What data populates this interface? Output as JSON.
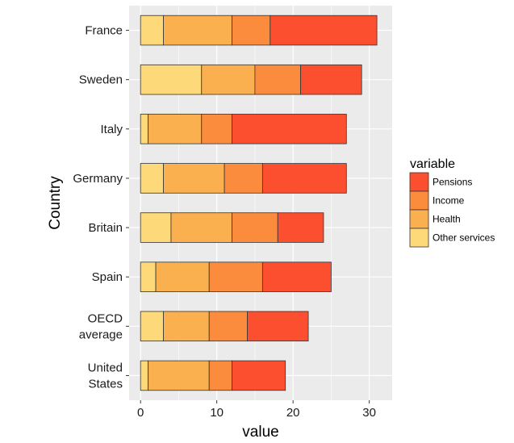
{
  "chart_data": {
    "type": "bar",
    "orientation": "horizontal",
    "stacked": true,
    "categories": [
      "France",
      "Sweden",
      "Italy",
      "Germany",
      "Britain",
      "Spain",
      "OECD average",
      "United States"
    ],
    "category_display": [
      [
        "France"
      ],
      [
        "Sweden"
      ],
      [
        "Italy"
      ],
      [
        "Germany"
      ],
      [
        "Britain"
      ],
      [
        "Spain"
      ],
      [
        "OECD",
        "average"
      ],
      [
        "United",
        "States"
      ]
    ],
    "series": [
      {
        "name": "Other services",
        "color": "#FDD97A",
        "values": [
          3,
          8,
          1,
          3,
          4,
          2,
          3,
          1
        ]
      },
      {
        "name": "Health",
        "color": "#FBB04F",
        "values": [
          9,
          7,
          7,
          8,
          8,
          7,
          6,
          8
        ]
      },
      {
        "name": "Income",
        "color": "#FC8C3D",
        "values": [
          5,
          6,
          4,
          5,
          6,
          7,
          5,
          3
        ]
      },
      {
        "name": "Pensions",
        "color": "#FC4F2F",
        "values": [
          14,
          8,
          15,
          11,
          6,
          9,
          8,
          7
        ]
      }
    ],
    "xlabel": "value",
    "ylabel": "Country",
    "xlim": [
      -1.5,
      33
    ],
    "xticks": [
      0,
      10,
      20,
      30
    ],
    "xtick_labels": [
      "0",
      "10",
      "20",
      "30"
    ],
    "legend_title": "variable",
    "legend_order": [
      "Pensions",
      "Income",
      "Health",
      "Other services"
    ],
    "legend_position": "right",
    "grid": true,
    "panel_background": "#EBEBEB",
    "grid_color": "#FFFFFF",
    "bar_outline": "#333333"
  }
}
